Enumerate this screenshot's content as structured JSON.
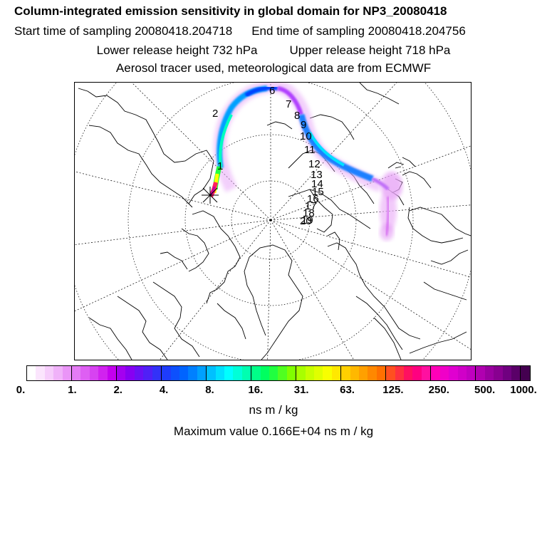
{
  "header": {
    "title": "Column-integrated emission sensitivity in global domain for NP3_20080418",
    "start_label": "Start time of sampling 20080418.204718",
    "end_label": "End time of sampling 20080418.204756",
    "lower_release": "Lower release height  732 hPa",
    "upper_release": "Upper release height  718 hPa",
    "source_note": "Aerosol tracer used, meteorological data are from ECMWF"
  },
  "map": {
    "projection": "north polar stereographic",
    "release_marker": "release-site-cross",
    "trajectory_day_labels": [
      "1",
      "2",
      "6",
      "7",
      "8",
      "9",
      "10",
      "11",
      "12",
      "13",
      "14",
      "15",
      "16",
      "17",
      "18",
      "19",
      "20"
    ],
    "plume_colors": [
      "#e000ff",
      "#0050ff",
      "#00ffff",
      "#00ff80",
      "#ffff00",
      "#ff2060"
    ]
  },
  "colorbar": {
    "colors": [
      "#ffffff",
      "#fbe5fd",
      "#f6cdfb",
      "#f0b2f9",
      "#ea95f7",
      "#e57cf5",
      "#de5ff3",
      "#d743f1",
      "#d122ef",
      "#c400ee",
      "#a400f0",
      "#8700f2",
      "#6a10f4",
      "#5020f6",
      "#3232f8",
      "#1e3cfb",
      "#0d50fd",
      "#0064ff",
      "#0080ff",
      "#00a0ff",
      "#00c0ff",
      "#00e0ff",
      "#00ffff",
      "#00ffd8",
      "#00ffb0",
      "#00ff88",
      "#00ff60",
      "#20ff40",
      "#50ff20",
      "#80ff00",
      "#a8ff00",
      "#c8ff00",
      "#e0ff00",
      "#f8ff00",
      "#ffe800",
      "#ffd000",
      "#ffb800",
      "#ffa000",
      "#ff8800",
      "#ff7000",
      "#ff5020",
      "#ff3040",
      "#ff1060",
      "#ff0080",
      "#ff10a0",
      "#ff00b8",
      "#f000c8",
      "#e000d0",
      "#d000c8",
      "#c000c0",
      "#b000b0",
      "#9a00a0",
      "#880090",
      "#700080",
      "#5a0068",
      "#440050"
    ],
    "tick_labels": [
      "0.",
      "1.",
      "2.",
      "4.",
      "8.",
      "16.",
      "31.",
      "63.",
      "125.",
      "250.",
      "500.",
      "1000."
    ],
    "units": "ns m / kg",
    "max_value": "Maximum value  0.166E+04 ns m / kg"
  }
}
